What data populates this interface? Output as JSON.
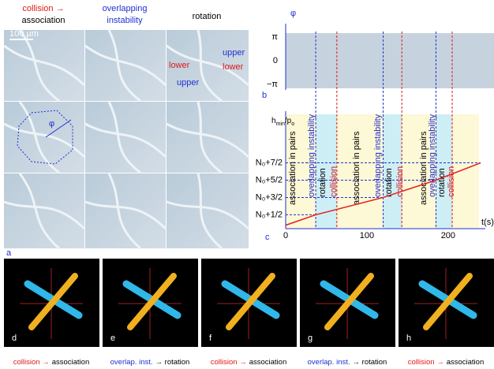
{
  "panel_a": {
    "label": "a",
    "headers": {
      "collision": "collision →",
      "association": "association",
      "overlapping": "overlapping",
      "instability": "instability",
      "rotation": "rotation"
    },
    "scale_bar": "100 µm",
    "phi": "φ",
    "lower": "lower",
    "upper": "upper"
  },
  "panel_b": {
    "label": "b",
    "axis_label": "φ",
    "yticks": [
      "π",
      "0",
      "−π"
    ]
  },
  "panel_c": {
    "label": "c",
    "y_label": {
      "main": "h",
      "sub1": "min",
      "mid": "/p",
      "sub2": "o"
    },
    "x_label": "t(s)",
    "xlim": [
      0,
      238
    ],
    "xticks": [
      0,
      100,
      200
    ],
    "ylim": [
      -0.3,
      6.3
    ],
    "yticks": [
      {
        "value": 0.5,
        "label": "N₀+1/2"
      },
      {
        "value": 1.5,
        "label": "N₀+3/2"
      },
      {
        "value": 2.5,
        "label": "N₀+5/2"
      },
      {
        "value": 3.5,
        "label": "N₀+7/2"
      }
    ],
    "blue_lines": [
      37,
      120,
      185
    ],
    "red_lines": [
      63,
      143,
      205
    ],
    "curve": {
      "color": "#e02020",
      "t": [
        0,
        37,
        120,
        185,
        240
      ],
      "y": [
        -0.1,
        0.5,
        1.5,
        2.5,
        3.5
      ]
    },
    "phases": [
      "association in pairs",
      "overlapping instability",
      "rotation",
      "collision",
      "association in pairs",
      "overlapping instability",
      "rotation",
      "collision",
      "association in pairs",
      "overlapping instability",
      "rotation",
      "collision"
    ]
  },
  "panels_bottom": [
    {
      "label": "d",
      "caption": {
        "part1": "collision →",
        "part2": "association"
      }
    },
    {
      "label": "e",
      "caption": {
        "part1": "overlap. inst.",
        "part2": "→ rotation"
      }
    },
    {
      "label": "f",
      "caption": {
        "part1": "collision →",
        "part2": "association"
      }
    },
    {
      "label": "g",
      "caption": {
        "part1": "overlap. inst.",
        "part2": "→ rotation"
      }
    },
    {
      "label": "h",
      "caption": {
        "part1": "collision →",
        "part2": "association"
      }
    }
  ]
}
